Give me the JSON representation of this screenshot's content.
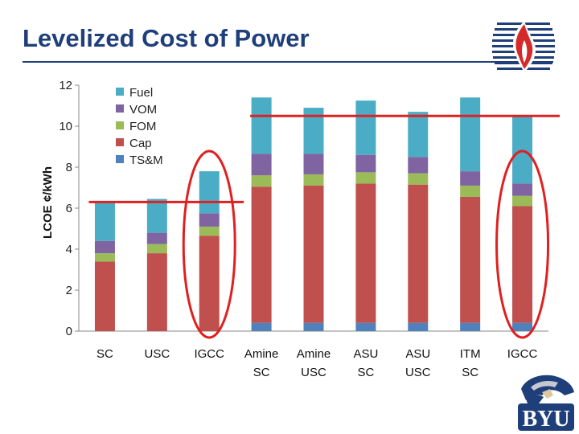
{
  "slide": {
    "title": "Levelized Cost of Power"
  },
  "chart_data": {
    "type": "bar",
    "stacked": true,
    "ylabel": "LCOE ¢/kWh",
    "xlabel": "",
    "ylim": [
      0,
      12
    ],
    "yticks": [
      0,
      2,
      4,
      6,
      8,
      10,
      12
    ],
    "grid": false,
    "legend_placement": "top-left",
    "categories": [
      "SC",
      "USC",
      "IGCC",
      "Amine SC",
      "Amine USC",
      "ASU SC",
      "ASU USC",
      "ITM SC",
      "IGCC"
    ],
    "series": [
      {
        "name": "TS&M",
        "color": "#4f81bd",
        "values": [
          0,
          0,
          0,
          0.4,
          0.4,
          0.4,
          0.4,
          0.4,
          0.4
        ]
      },
      {
        "name": "Cap",
        "color": "#c0504d",
        "values": [
          3.4,
          3.8,
          4.65,
          6.65,
          6.7,
          6.8,
          6.75,
          6.15,
          5.7
        ]
      },
      {
        "name": "FOM",
        "color": "#9bbb59",
        "values": [
          0.4,
          0.45,
          0.45,
          0.55,
          0.55,
          0.55,
          0.55,
          0.55,
          0.5
        ]
      },
      {
        "name": "VOM",
        "color": "#8064a2",
        "values": [
          0.6,
          0.55,
          0.65,
          1.05,
          1.0,
          0.85,
          0.8,
          0.7,
          0.6
        ]
      },
      {
        "name": "Fuel",
        "color": "#4bacc6",
        "values": [
          1.9,
          1.65,
          2.05,
          2.75,
          2.25,
          2.65,
          2.2,
          3.6,
          3.3
        ]
      }
    ],
    "reference_lines": [
      {
        "y": 6.3,
        "color": "#e02020"
      },
      {
        "y": 10.5,
        "color": "#e02020"
      }
    ],
    "highlight_ellipses": [
      {
        "category_index": 2,
        "color": "#e02020"
      },
      {
        "category_index": 8,
        "color": "#e02020"
      }
    ]
  },
  "logos": {
    "top_right": "flame-logo",
    "bottom_right": "BYU"
  }
}
